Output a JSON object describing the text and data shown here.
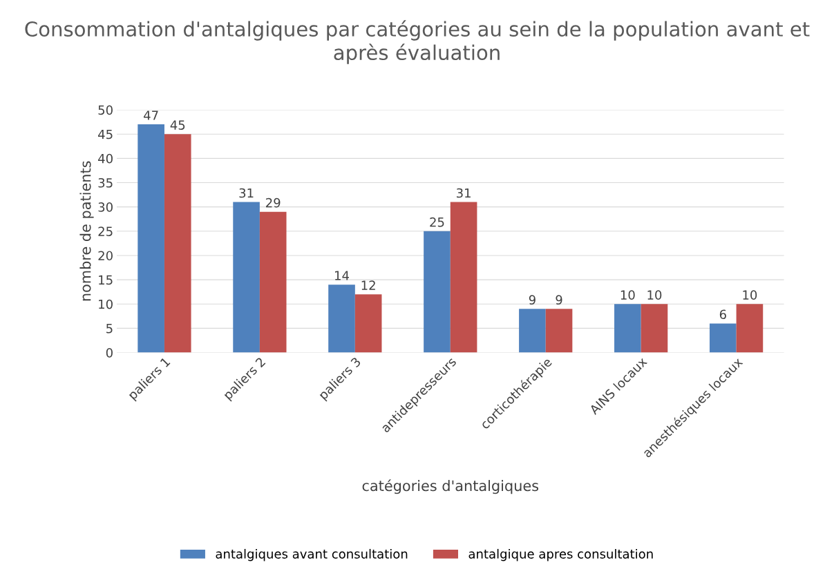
{
  "chart_data": {
    "type": "bar",
    "title": "Consommation d'antalgiques par catégories au sein de la population avant et après évaluation",
    "xlabel": "catégories d'antalgiques",
    "ylabel": "nombre de patients",
    "categories": [
      "paliers 1",
      "paliers 2",
      "paliers 3",
      "antidepresseurs",
      "corticothérapie",
      "AINS locaux",
      "anesthésiques locaux"
    ],
    "series": [
      {
        "name": "antalgiques avant consultation",
        "color": "#4f81bd",
        "values": [
          47,
          31,
          14,
          25,
          9,
          10,
          6
        ]
      },
      {
        "name": "antalgique apres consultation",
        "color": "#c0504d",
        "values": [
          45,
          29,
          12,
          31,
          9,
          10,
          10
        ]
      }
    ],
    "ylim": [
      0,
      50
    ],
    "yticks": [
      0,
      5,
      10,
      15,
      20,
      25,
      30,
      35,
      40,
      45,
      50
    ],
    "grid": "y",
    "legend": "bottom",
    "data_labels": true
  }
}
